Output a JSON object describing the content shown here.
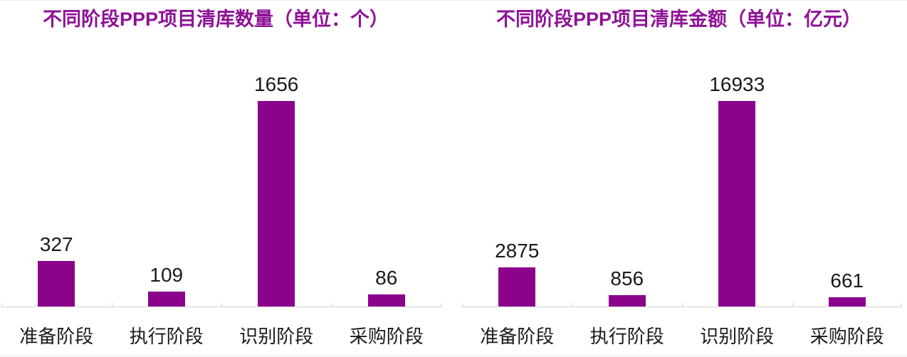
{
  "colors": {
    "title": "#8e1296",
    "bar": "#8b028b",
    "axis": "#d7d2d2",
    "value_label": "#1a1a1a",
    "category_label": "#1a1a1a",
    "background": "#ffffff"
  },
  "chart_data": [
    {
      "type": "bar",
      "title": "不同阶段PPP项目清库数量（单位：个）",
      "unit": "个",
      "categories": [
        "准备阶段",
        "执行阶段",
        "识别阶段",
        "采购阶段"
      ],
      "values": [
        327,
        109,
        1656,
        86
      ],
      "value_labels": [
        "327",
        "109",
        "1656",
        "86"
      ],
      "ylim": [
        0,
        1656
      ],
      "grid": false,
      "legend": "none",
      "y_axis_visible": false,
      "x_axis_ticks": 5
    },
    {
      "type": "bar",
      "title": "不同阶段PPP项目清库金额（单位：亿元）",
      "unit": "亿元",
      "categories": [
        "准备阶段",
        "执行阶段",
        "识别阶段",
        "采购阶段"
      ],
      "values": [
        2875,
        856,
        16933,
        661
      ],
      "value_labels": [
        "2875",
        "856",
        "16933",
        "661"
      ],
      "ylim": [
        0,
        16933
      ],
      "grid": false,
      "legend": "none",
      "y_axis_visible": false,
      "x_axis_ticks": 5
    }
  ]
}
